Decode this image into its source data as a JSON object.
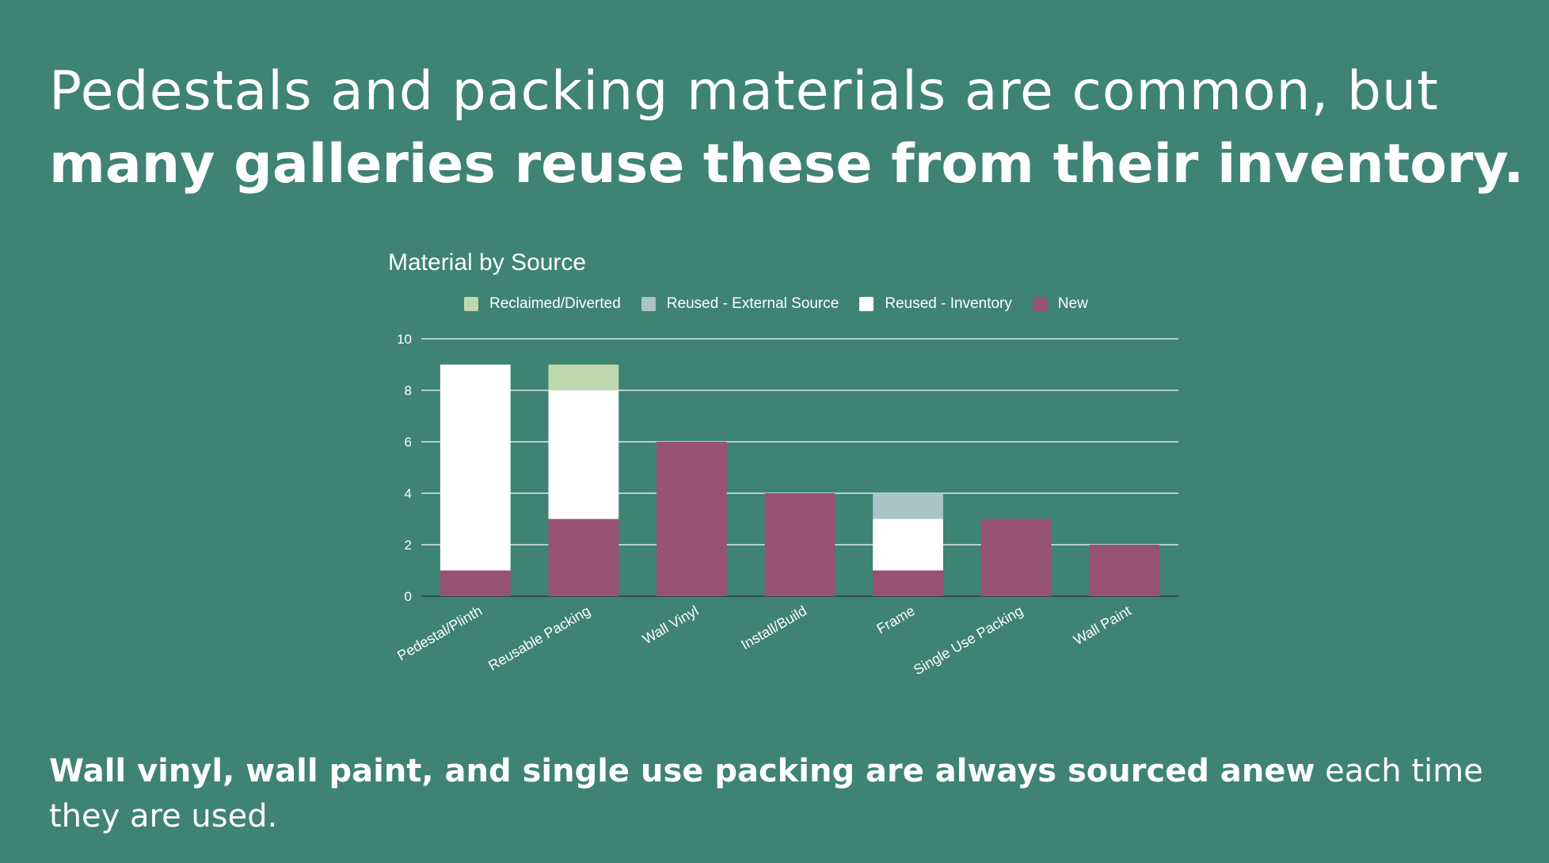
{
  "headline": {
    "line1": "Pedestals and packing materials are common, but",
    "line2": "many galleries reuse these from their inventory."
  },
  "footnote": {
    "bold": "Wall vinyl, wall paint, and single use packing are always sourced anew",
    "regular": " each time they are used."
  },
  "colors": {
    "background": "#3e8373",
    "reclaimed": "#c0d8ad",
    "reused_external": "#a9c3c8",
    "reused_inventory": "#ffffff",
    "new": "#975172"
  },
  "chart_data": {
    "type": "bar",
    "stacked": true,
    "title": "Material by Source",
    "xlabel": "",
    "ylabel": "",
    "ylim": [
      0,
      10
    ],
    "yticks": [
      0,
      2,
      4,
      6,
      8,
      10
    ],
    "grid": true,
    "legend_position": "top",
    "categories": [
      "Pedestal/Plinth",
      "Reusable Packing",
      "Wall Vinyl",
      "Install/Build",
      "Frame",
      "Single Use Packing",
      "Wall Paint"
    ],
    "series": [
      {
        "name": "New",
        "color": "#975172",
        "values": [
          1,
          3,
          6,
          4,
          1,
          3,
          2
        ]
      },
      {
        "name": "Reused - Inventory",
        "color": "#ffffff",
        "values": [
          8,
          5,
          0,
          0,
          2,
          0,
          0
        ]
      },
      {
        "name": "Reused - External Source",
        "color": "#a9c3c8",
        "values": [
          0,
          0,
          0,
          0,
          1,
          0,
          0
        ]
      },
      {
        "name": "Reclaimed/Diverted",
        "color": "#c0d8ad",
        "values": [
          0,
          1,
          0,
          0,
          0,
          0,
          0
        ]
      }
    ],
    "legend_order": [
      "Reclaimed/Diverted",
      "Reused - External Source",
      "Reused - Inventory",
      "New"
    ]
  }
}
